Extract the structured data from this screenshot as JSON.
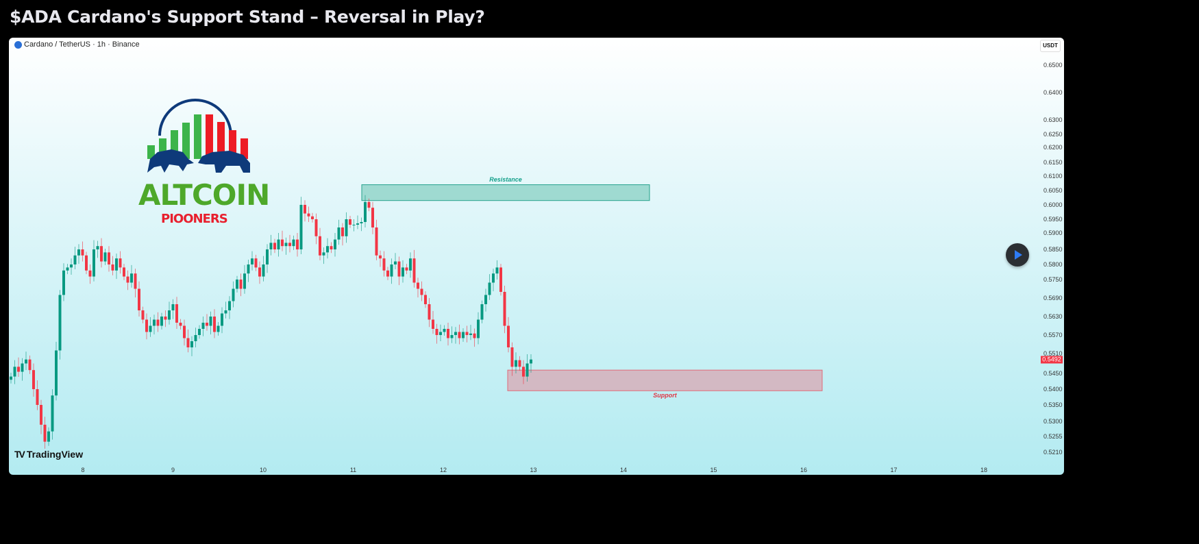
{
  "title": "$ADA Cardano's Support Stand – Reversal in Play?",
  "symbol_line": "Cardano / TetherUS · 1h · Binance",
  "currency_button": "USDT",
  "brand": "TradingView",
  "logo": {
    "line1": "ALTCOIN",
    "line2": "PIOONERS"
  },
  "colors": {
    "up": "#089981",
    "down": "#f23645",
    "resistance_fill": "#9fdad1",
    "support_fill": "#d3b9c3",
    "background_bottom": "#b3ebf1"
  },
  "chart_data": {
    "type": "candlestick",
    "interval": "1h",
    "x_tick_labels": [
      "8",
      "9",
      "10",
      "11",
      "12",
      "13",
      "14",
      "15",
      "16",
      "17",
      "18"
    ],
    "y_tick_labels": [
      "0.6500",
      "0.6400",
      "0.6300",
      "0.6250",
      "0.6200",
      "0.6150",
      "0.6100",
      "0.6050",
      "0.6000",
      "0.5950",
      "0.5900",
      "0.5850",
      "0.5800",
      "0.5750",
      "0.5690",
      "0.5630",
      "0.5570",
      "0.5510",
      "0.5450",
      "0.5400",
      "0.5350",
      "0.5300",
      "0.5255",
      "0.5210"
    ],
    "last_price": "0.5492",
    "closes": [
      0.544,
      0.547,
      0.5455,
      0.548,
      0.5492,
      0.546,
      0.54,
      0.535,
      0.529,
      0.524,
      0.527,
      0.538,
      0.552,
      0.57,
      0.578,
      0.579,
      0.58,
      0.583,
      0.585,
      0.583,
      0.578,
      0.576,
      0.585,
      0.586,
      0.581,
      0.584,
      0.58,
      0.578,
      0.582,
      0.579,
      0.576,
      0.574,
      0.577,
      0.572,
      0.565,
      0.562,
      0.558,
      0.56,
      0.562,
      0.56,
      0.563,
      0.562,
      0.565,
      0.567,
      0.561,
      0.56,
      0.556,
      0.553,
      0.555,
      0.557,
      0.559,
      0.561,
      0.56,
      0.563,
      0.558,
      0.56,
      0.564,
      0.565,
      0.568,
      0.572,
      0.575,
      0.572,
      0.577,
      0.58,
      0.582,
      0.579,
      0.576,
      0.58,
      0.585,
      0.587,
      0.585,
      0.588,
      0.586,
      0.587,
      0.586,
      0.588,
      0.585,
      0.6,
      0.597,
      0.596,
      0.595,
      0.589,
      0.583,
      0.584,
      0.586,
      0.585,
      0.588,
      0.592,
      0.589,
      0.595,
      0.593,
      0.593,
      0.5935,
      0.594,
      0.601,
      0.599,
      0.592,
      0.583,
      0.582,
      0.578,
      0.576,
      0.58,
      0.581,
      0.576,
      0.579,
      0.578,
      0.582,
      0.574,
      0.572,
      0.57,
      0.567,
      0.562,
      0.559,
      0.557,
      0.558,
      0.559,
      0.556,
      0.557,
      0.558,
      0.556,
      0.558,
      0.557,
      0.5575,
      0.556,
      0.562,
      0.567,
      0.57,
      0.574,
      0.577,
      0.579,
      0.571,
      0.56,
      0.553,
      0.547,
      0.549,
      0.547,
      0.544,
      0.548,
      0.5492
    ],
    "zones": [
      {
        "label": "Resistance",
        "from": 0.6015,
        "to": 0.607
      },
      {
        "label": "Support",
        "from": 0.5395,
        "to": 0.546
      }
    ]
  }
}
